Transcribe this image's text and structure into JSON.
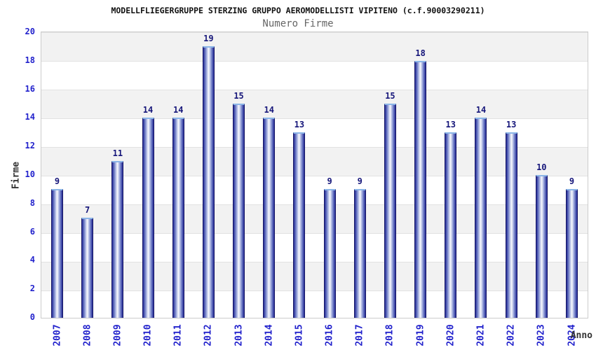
{
  "chart_data": {
    "type": "bar",
    "title": "MODELLFLIEGERGRUPPE STERZING GRUPPO AEROMODELLISTI VIPITENO (c.f.90003290211)",
    "subtitle": "Numero Firme",
    "xlabel": "Anno",
    "ylabel": "Firme",
    "categories": [
      "2007",
      "2008",
      "2009",
      "2010",
      "2011",
      "2012",
      "2013",
      "2014",
      "2015",
      "2016",
      "2017",
      "2018",
      "2019",
      "2020",
      "2021",
      "2022",
      "2023",
      "2024"
    ],
    "values": [
      9,
      7,
      11,
      14,
      14,
      19,
      15,
      14,
      13,
      9,
      9,
      15,
      18,
      13,
      14,
      13,
      10,
      9
    ],
    "ylim": [
      0,
      20
    ],
    "ytick_step": 2,
    "grid": "alternating-horizontal-bands",
    "legend": "none",
    "bar_labels_shown": true
  },
  "colors": {
    "title": "#111111",
    "subtitle": "#666666",
    "axis_title": "#333333",
    "tick_label": "#2222cc",
    "value_label": "#16167a",
    "band_gray": "#f2f2f2",
    "grid_line": "#e2e2e2",
    "bar_edge_dark": "#161666",
    "bar_edge": "#222a96",
    "bar_mid": "#8a97d4",
    "bar_center": "#fbfcff",
    "bar_cap": "#8cb6e8"
  }
}
